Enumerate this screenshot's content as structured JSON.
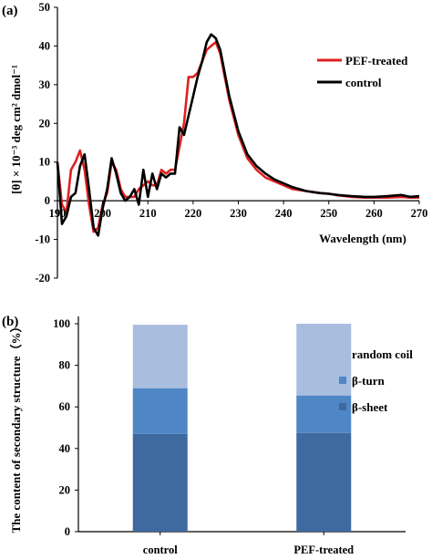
{
  "chart_data": [
    {
      "panel": "(a)",
      "type": "line",
      "xlabel": "Wavelength (nm)",
      "ylabel": "[θ] × 10⁻³ deg cm² dmol⁻¹",
      "xlim": [
        190,
        270
      ],
      "ylim": [
        -20,
        50
      ],
      "xticks": [
        190,
        200,
        210,
        220,
        230,
        240,
        250,
        260,
        270
      ],
      "yticks": [
        -20,
        -10,
        0,
        10,
        20,
        30,
        40,
        50
      ],
      "legend_position": "top-right",
      "series": [
        {
          "name": "PEF-treated",
          "color": "#e02020",
          "x": [
            190,
            191,
            192,
            193,
            194,
            195,
            196,
            197,
            198,
            199,
            200,
            201,
            202,
            203,
            204,
            205,
            206,
            207,
            208,
            209,
            210,
            211,
            212,
            213,
            214,
            215,
            216,
            217,
            218,
            219,
            220,
            221,
            222,
            223,
            224,
            225,
            226,
            227,
            228,
            230,
            232,
            234,
            236,
            238,
            240,
            242,
            245,
            248,
            250,
            252,
            255,
            258,
            260,
            263,
            266,
            268,
            270
          ],
          "y": [
            10,
            -1,
            -3,
            8,
            10,
            13,
            8,
            -1,
            -8,
            -7,
            -1,
            2,
            10,
            8,
            3,
            1,
            1,
            1,
            3,
            4,
            5,
            4,
            4,
            8,
            7,
            8,
            8,
            14,
            20,
            32,
            32,
            33,
            36,
            39,
            40,
            41,
            38,
            32,
            26,
            17,
            11,
            8,
            6,
            5,
            4,
            3,
            2.5,
            2,
            1.8,
            1.4,
            1.0,
            0.8,
            0.8,
            0.8,
            1.0,
            0.8,
            0.8
          ]
        },
        {
          "name": "control",
          "color": "#000000",
          "x": [
            190,
            191,
            192,
            193,
            194,
            195,
            196,
            197,
            198,
            199,
            200,
            201,
            202,
            203,
            204,
            205,
            206,
            207,
            208,
            209,
            210,
            211,
            212,
            213,
            214,
            215,
            216,
            217,
            218,
            219,
            220,
            221,
            222,
            223,
            224,
            225,
            226,
            227,
            228,
            230,
            232,
            234,
            236,
            238,
            240,
            242,
            245,
            248,
            250,
            252,
            255,
            258,
            260,
            263,
            266,
            268,
            270
          ],
          "y": [
            10,
            -6,
            -4,
            1,
            2,
            9,
            12,
            3,
            -7,
            -9,
            -2,
            3,
            11,
            7,
            2,
            0,
            1,
            3,
            -1,
            8,
            1,
            7,
            3,
            7,
            6,
            7,
            7,
            19,
            17,
            22,
            27,
            32,
            36,
            41,
            43,
            42,
            39,
            33,
            27,
            18,
            12,
            9,
            7,
            5.5,
            4.5,
            3.5,
            2.5,
            2,
            1.8,
            1.5,
            1.2,
            1,
            1,
            1.2,
            1.5,
            1,
            1.2
          ]
        }
      ]
    },
    {
      "panel": "(b)",
      "type": "bar",
      "stacked": true,
      "categories": [
        "control",
        "PEF-treated"
      ],
      "ylabel": "The content of secondary structure（%）",
      "ylim": [
        0,
        100
      ],
      "yticks": [
        0,
        20,
        40,
        60,
        80,
        100
      ],
      "legend_position": "right",
      "series": [
        {
          "name": "β-sheet",
          "color": "#3f6aa0",
          "values": [
            47,
            47.5
          ]
        },
        {
          "name": "β-turn",
          "color": "#4f86c6",
          "values": [
            22,
            18
          ]
        },
        {
          "name": "random coil",
          "color": "#a9bddf",
          "values": [
            30.5,
            34.5
          ]
        }
      ]
    }
  ]
}
